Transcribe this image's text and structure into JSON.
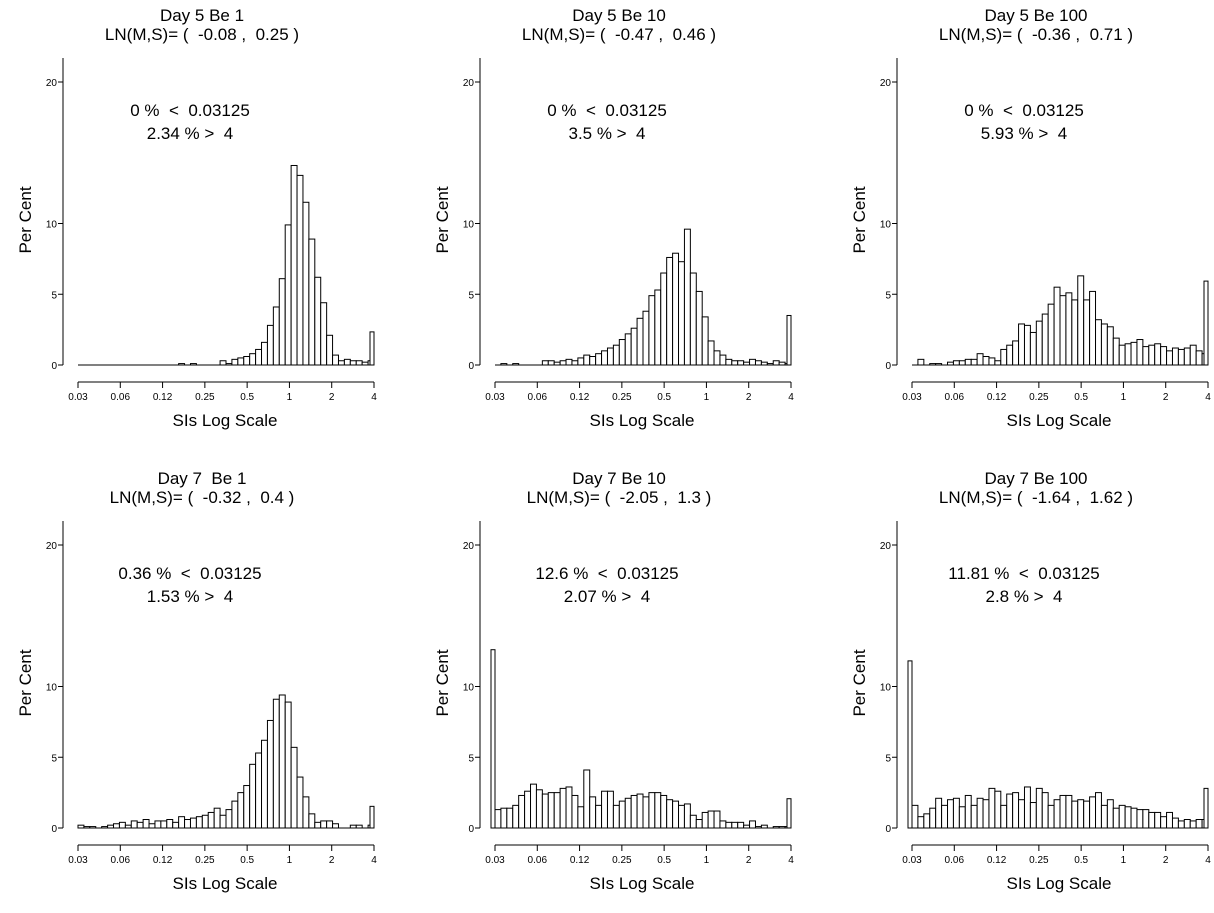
{
  "chart_data": [
    {
      "type": "bar",
      "title": "Day 5 Be 1",
      "subtitle": "LN(M,S)= (  -0.08 ,  0.25 )",
      "annotation_low": "0 %  <  0.03125",
      "annotation_high": "2.34 % >  4",
      "xlabel": "SIs Log Scale",
      "ylabel": "Per Cent",
      "x_scale": "log2",
      "xlim": [
        0.03125,
        4
      ],
      "ylim": [
        0,
        20
      ],
      "y_ticks": [
        "0",
        "5",
        "10",
        "20"
      ],
      "x_ticks": [
        "0.03",
        "0.06",
        "0.12",
        "0.25",
        "0.5",
        "1",
        "2",
        "4"
      ],
      "grid": false,
      "bins": 50,
      "values": [
        0.0,
        0.0,
        0.0,
        0.0,
        0.0,
        0.0,
        0.0,
        0.0,
        0.0,
        0.0,
        0.0,
        0.0,
        0.0,
        0.0,
        0.0,
        0.0,
        0.0,
        0.1,
        0.0,
        0.1,
        0.0,
        0.0,
        0.0,
        0.0,
        0.3,
        0.1,
        0.4,
        0.5,
        0.6,
        0.8,
        1.1,
        1.6,
        2.8,
        4.1,
        6.1,
        9.9,
        14.1,
        13.4,
        11.5,
        8.9,
        6.2,
        4.4,
        2.1,
        0.7,
        0.3,
        0.4,
        0.3,
        0.3,
        0.2,
        0.3
      ],
      "overflow_value": 2.34
    },
    {
      "type": "bar",
      "title": "Day 5 Be 10",
      "subtitle": "LN(M,S)= (  -0.47 ,  0.46 )",
      "annotation_low": "0 %  <  0.03125",
      "annotation_high": "3.5 % >  4",
      "xlabel": "SIs Log Scale",
      "ylabel": "Per Cent",
      "x_scale": "log2",
      "xlim": [
        0.03125,
        4
      ],
      "ylim": [
        0,
        20
      ],
      "y_ticks": [
        "0",
        "5",
        "10",
        "20"
      ],
      "x_ticks": [
        "0.03",
        "0.06",
        "0.12",
        "0.25",
        "0.5",
        "1",
        "2",
        "4"
      ],
      "grid": false,
      "bins": 50,
      "values": [
        0.0,
        0.1,
        0.0,
        0.1,
        0.0,
        0.0,
        0.0,
        0.0,
        0.3,
        0.3,
        0.2,
        0.3,
        0.4,
        0.3,
        0.5,
        0.7,
        0.6,
        0.8,
        1.0,
        1.2,
        1.4,
        1.8,
        2.2,
        2.6,
        3.3,
        3.8,
        4.9,
        5.3,
        6.5,
        7.6,
        7.9,
        7.3,
        9.6,
        6.5,
        5.2,
        3.4,
        1.7,
        1.0,
        0.7,
        0.4,
        0.3,
        0.3,
        0.2,
        0.4,
        0.3,
        0.2,
        0.1,
        0.3,
        0.2,
        0.1
      ],
      "overflow_value": 3.5
    },
    {
      "type": "bar",
      "title": "Day 5 Be 100",
      "subtitle": "LN(M,S)= (  -0.36 ,  0.71 )",
      "annotation_low": "0 %  <  0.03125",
      "annotation_high": "5.93 % >  4",
      "xlabel": "SIs Log Scale",
      "ylabel": "Per Cent",
      "x_scale": "log2",
      "xlim": [
        0.03125,
        4
      ],
      "ylim": [
        0,
        20
      ],
      "y_ticks": [
        "0",
        "5",
        "10",
        "20"
      ],
      "x_ticks": [
        "0.03",
        "0.06",
        "0.12",
        "0.25",
        "0.5",
        "1",
        "2",
        "4"
      ],
      "grid": false,
      "bins": 50,
      "values": [
        0.0,
        0.4,
        0.0,
        0.1,
        0.1,
        0.0,
        0.2,
        0.3,
        0.3,
        0.4,
        0.4,
        0.8,
        0.6,
        0.5,
        0.3,
        1.1,
        1.4,
        1.7,
        2.9,
        2.8,
        2.3,
        3.1,
        3.6,
        4.3,
        5.5,
        4.9,
        5.1,
        4.6,
        6.3,
        4.6,
        5.2,
        3.2,
        2.9,
        2.7,
        1.9,
        1.4,
        1.5,
        1.6,
        1.8,
        1.3,
        1.4,
        1.5,
        1.3,
        1.0,
        1.2,
        1.1,
        1.2,
        1.4,
        1.0,
        0.8
      ],
      "overflow_value": 5.93
    },
    {
      "type": "bar",
      "title": "Day 7  Be 1",
      "subtitle": "LN(M,S)= (  -0.32 ,  0.4 )",
      "annotation_low": "0.36 %  <  0.03125",
      "annotation_high": "1.53 % >  4",
      "xlabel": "SIs Log Scale",
      "ylabel": "Per Cent",
      "x_scale": "log2",
      "xlim": [
        0.03125,
        4
      ],
      "ylim": [
        0,
        20
      ],
      "y_ticks": [
        "0",
        "5",
        "10",
        "20"
      ],
      "x_ticks": [
        "0.03",
        "0.06",
        "0.12",
        "0.25",
        "0.5",
        "1",
        "2",
        "4"
      ],
      "grid": false,
      "bins": 50,
      "values": [
        0.2,
        0.1,
        0.1,
        0.0,
        0.1,
        0.2,
        0.3,
        0.4,
        0.2,
        0.5,
        0.4,
        0.6,
        0.3,
        0.5,
        0.5,
        0.6,
        0.4,
        0.8,
        0.6,
        0.7,
        0.8,
        0.9,
        1.1,
        1.4,
        0.9,
        1.3,
        1.9,
        2.5,
        3.0,
        4.5,
        5.3,
        6.2,
        7.6,
        9.1,
        9.4,
        8.9,
        5.7,
        3.6,
        2.2,
        1.0,
        0.4,
        0.5,
        0.5,
        0.3,
        0.0,
        0.0,
        0.2,
        0.2,
        0.0,
        0.2
      ],
      "overflow_value": 1.53
    },
    {
      "type": "bar",
      "title": "Day 7 Be 10",
      "subtitle": "LN(M,S)= (  -2.05 ,  1.3 )",
      "annotation_low": "12.6 %  <  0.03125",
      "annotation_high": "2.07 % >  4",
      "xlabel": "SIs Log Scale",
      "ylabel": "Per Cent",
      "x_scale": "log2",
      "xlim": [
        0.03125,
        4
      ],
      "ylim": [
        0,
        20
      ],
      "y_ticks": [
        "0",
        "5",
        "10",
        "20"
      ],
      "x_ticks": [
        "0.03",
        "0.06",
        "0.12",
        "0.25",
        "0.5",
        "1",
        "2",
        "4"
      ],
      "grid": false,
      "bins": 50,
      "values": [
        1.3,
        1.4,
        1.4,
        1.6,
        2.3,
        2.6,
        3.1,
        2.7,
        2.4,
        2.5,
        2.5,
        2.8,
        2.9,
        2.3,
        1.5,
        4.1,
        2.2,
        1.6,
        2.6,
        2.6,
        1.6,
        1.9,
        2.1,
        2.3,
        2.4,
        2.2,
        2.5,
        2.5,
        2.3,
        2.0,
        1.9,
        1.6,
        1.7,
        0.9,
        0.6,
        1.1,
        1.2,
        1.2,
        0.5,
        0.4,
        0.4,
        0.4,
        0.2,
        0.5,
        0.1,
        0.2,
        0.0,
        0.1,
        0.1,
        0.1
      ],
      "underflow_value": 12.6,
      "overflow_value": 2.07
    },
    {
      "type": "bar",
      "title": "Day 7 Be 100",
      "subtitle": "LN(M,S)= (  -1.64 ,  1.62 )",
      "annotation_low": "11.81 %  <  0.03125",
      "annotation_high": "2.8 % >  4",
      "xlabel": "SIs Log Scale",
      "ylabel": "Per Cent",
      "x_scale": "log2",
      "xlim": [
        0.03125,
        4
      ],
      "ylim": [
        0,
        20
      ],
      "y_ticks": [
        "0",
        "5",
        "10",
        "20"
      ],
      "x_ticks": [
        "0.03",
        "0.06",
        "0.12",
        "0.25",
        "0.5",
        "1",
        "2",
        "4"
      ],
      "grid": false,
      "bins": 50,
      "values": [
        1.6,
        0.8,
        1.0,
        1.4,
        2.1,
        1.6,
        2.0,
        2.1,
        1.5,
        2.3,
        1.6,
        2.1,
        2.0,
        2.8,
        2.6,
        1.6,
        2.4,
        2.5,
        2.0,
        2.9,
        1.8,
        2.8,
        2.5,
        1.6,
        2.0,
        2.3,
        2.3,
        1.9,
        2.0,
        1.9,
        2.2,
        2.5,
        1.6,
        2.0,
        1.4,
        1.6,
        1.5,
        1.4,
        1.3,
        1.3,
        1.1,
        1.1,
        0.8,
        1.1,
        0.7,
        0.5,
        0.6,
        0.5,
        0.6,
        0.6
      ],
      "underflow_value": 11.81,
      "overflow_value": 2.8
    }
  ]
}
